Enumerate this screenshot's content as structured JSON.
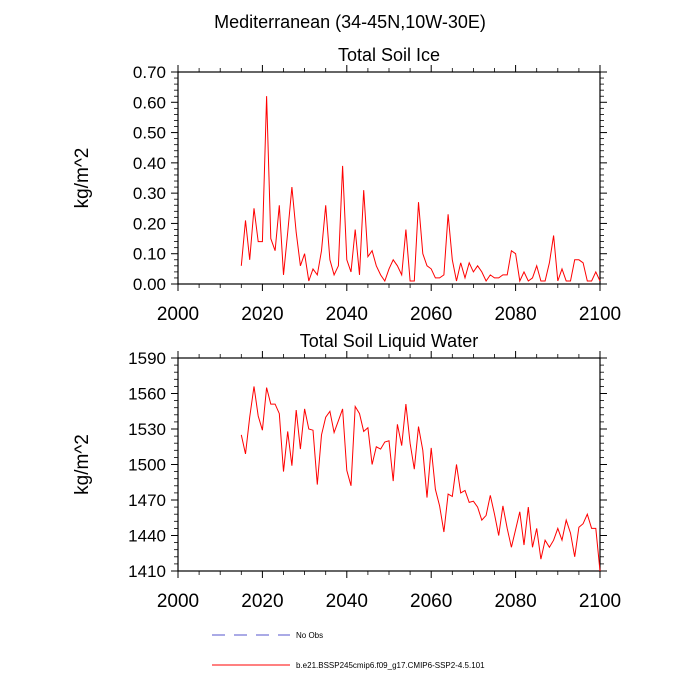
{
  "figure": {
    "title": "Mediterranean (34-45N,10W-30E)"
  },
  "colors": {
    "series": "#ff0000",
    "obs": "#5555cc",
    "axis": "#000000"
  },
  "chart_data": [
    {
      "type": "line",
      "title": "Total Soil Ice",
      "xlabel": "",
      "ylabel": "kg/m^2",
      "xlim": [
        2000,
        2100
      ],
      "ylim": [
        0.0,
        0.7
      ],
      "xticks": [
        2000,
        2020,
        2040,
        2060,
        2080,
        2100
      ],
      "xtick_labels": [
        "2000",
        "2020",
        "2040",
        "2060",
        "2080",
        "2100"
      ],
      "yticks": [
        0.0,
        0.1,
        0.2,
        0.3,
        0.4,
        0.5,
        0.6,
        0.7
      ],
      "ytick_labels": [
        "0.00",
        "0.10",
        "0.20",
        "0.30",
        "0.40",
        "0.50",
        "0.60",
        "0.70"
      ],
      "series": [
        {
          "name": "b.e21.BSSP245cmip6.f09_g17.CMIP6-SSP2-4.5.101",
          "x": [
            2015,
            2016,
            2017,
            2018,
            2019,
            2020,
            2021,
            2022,
            2023,
            2024,
            2025,
            2026,
            2027,
            2028,
            2029,
            2030,
            2031,
            2032,
            2033,
            2034,
            2035,
            2036,
            2037,
            2038,
            2039,
            2040,
            2041,
            2042,
            2043,
            2044,
            2045,
            2046,
            2047,
            2048,
            2049,
            2050,
            2051,
            2052,
            2053,
            2054,
            2055,
            2056,
            2057,
            2058,
            2059,
            2060,
            2061,
            2062,
            2063,
            2064,
            2065,
            2066,
            2067,
            2068,
            2069,
            2070,
            2071,
            2072,
            2073,
            2074,
            2075,
            2076,
            2077,
            2078,
            2079,
            2080,
            2081,
            2082,
            2083,
            2084,
            2085,
            2086,
            2087,
            2088,
            2089,
            2090,
            2091,
            2092,
            2093,
            2094,
            2095,
            2096,
            2097,
            2098,
            2099,
            2100
          ],
          "y": [
            0.06,
            0.21,
            0.08,
            0.25,
            0.14,
            0.14,
            0.62,
            0.15,
            0.11,
            0.26,
            0.03,
            0.17,
            0.32,
            0.17,
            0.06,
            0.1,
            0.01,
            0.05,
            0.03,
            0.11,
            0.26,
            0.08,
            0.03,
            0.06,
            0.39,
            0.08,
            0.04,
            0.18,
            0.03,
            0.31,
            0.09,
            0.11,
            0.06,
            0.03,
            0.01,
            0.05,
            0.08,
            0.06,
            0.03,
            0.18,
            0.01,
            0.01,
            0.27,
            0.1,
            0.06,
            0.05,
            0.02,
            0.02,
            0.03,
            0.23,
            0.08,
            0.01,
            0.07,
            0.02,
            0.07,
            0.04,
            0.06,
            0.04,
            0.01,
            0.03,
            0.02,
            0.02,
            0.03,
            0.03,
            0.11,
            0.1,
            0.01,
            0.04,
            0.01,
            0.02,
            0.06,
            0.01,
            0.01,
            0.07,
            0.16,
            0.01,
            0.05,
            0.01,
            0.01,
            0.08,
            0.08,
            0.07,
            0.01,
            0.01,
            0.04,
            0.01
          ]
        }
      ]
    },
    {
      "type": "line",
      "title": "Total Soil Liquid Water",
      "xlabel": "",
      "ylabel": "kg/m^2",
      "xlim": [
        2000,
        2100
      ],
      "ylim": [
        1410,
        1590
      ],
      "xticks": [
        2000,
        2020,
        2040,
        2060,
        2080,
        2100
      ],
      "xtick_labels": [
        "2000",
        "2020",
        "2040",
        "2060",
        "2080",
        "2100"
      ],
      "yticks": [
        1410,
        1440,
        1470,
        1500,
        1530,
        1560,
        1590
      ],
      "ytick_labels": [
        "1410",
        "1440",
        "1470",
        "1500",
        "1530",
        "1560",
        "1590"
      ],
      "series": [
        {
          "name": "b.e21.BSSP245cmip6.f09_g17.CMIP6-SSP2-4.5.101",
          "x": [
            2015,
            2016,
            2017,
            2018,
            2019,
            2020,
            2021,
            2022,
            2023,
            2024,
            2025,
            2026,
            2027,
            2028,
            2029,
            2030,
            2031,
            2032,
            2033,
            2034,
            2035,
            2036,
            2037,
            2038,
            2039,
            2040,
            2041,
            2042,
            2043,
            2044,
            2045,
            2046,
            2047,
            2048,
            2049,
            2050,
            2051,
            2052,
            2053,
            2054,
            2055,
            2056,
            2057,
            2058,
            2059,
            2060,
            2061,
            2062,
            2063,
            2064,
            2065,
            2066,
            2067,
            2068,
            2069,
            2070,
            2071,
            2072,
            2073,
            2074,
            2075,
            2076,
            2077,
            2078,
            2079,
            2080,
            2081,
            2082,
            2083,
            2084,
            2085,
            2086,
            2087,
            2088,
            2089,
            2090,
            2091,
            2092,
            2093,
            2094,
            2095,
            2096,
            2097,
            2098,
            2099,
            2100
          ],
          "y": [
            1525,
            1509,
            1540,
            1566,
            1541,
            1529,
            1565,
            1551,
            1551,
            1543,
            1494,
            1528,
            1499,
            1546,
            1513,
            1547,
            1530,
            1529,
            1483,
            1525,
            1540,
            1545,
            1527,
            1537,
            1547,
            1495,
            1482,
            1549,
            1543,
            1528,
            1531,
            1500,
            1515,
            1513,
            1519,
            1520,
            1486,
            1534,
            1516,
            1551,
            1518,
            1496,
            1532,
            1512,
            1472,
            1514,
            1479,
            1465,
            1443,
            1475,
            1473,
            1500,
            1476,
            1478,
            1468,
            1469,
            1464,
            1453,
            1457,
            1474,
            1458,
            1440,
            1465,
            1446,
            1430,
            1445,
            1460,
            1432,
            1464,
            1430,
            1446,
            1420,
            1436,
            1430,
            1436,
            1446,
            1436,
            1453,
            1442,
            1422,
            1447,
            1450,
            1458,
            1446,
            1446,
            1410
          ]
        }
      ]
    }
  ],
  "legend": {
    "items": [
      {
        "name": "No Obs",
        "style": "dashed",
        "color": "#5555cc"
      },
      {
        "name": "b.e21.BSSP245cmip6.f09_g17.CMIP6-SSP2-4.5.101",
        "style": "solid",
        "color": "#ff0000"
      }
    ]
  }
}
